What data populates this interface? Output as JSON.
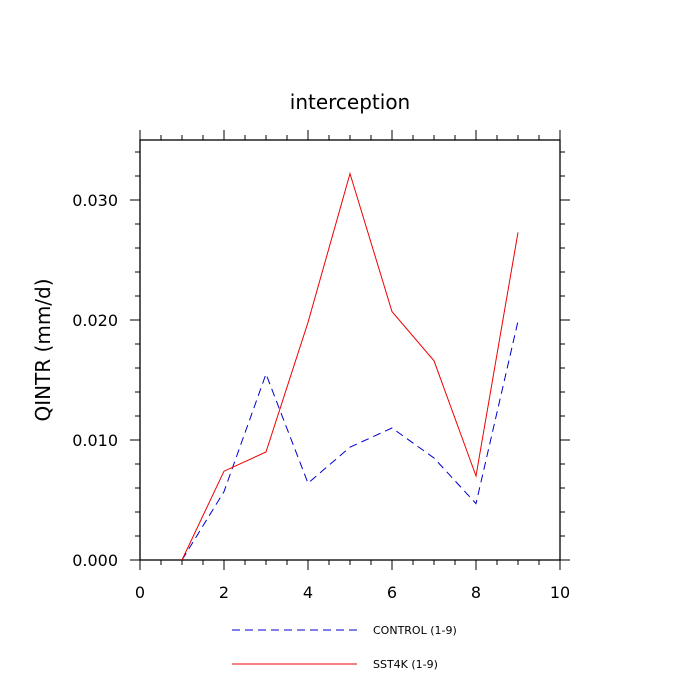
{
  "chart_data": {
    "type": "line",
    "title": "interception",
    "xlabel": "",
    "ylabel": "QINTR  (mm/d)",
    "xlim": [
      0,
      10
    ],
    "ylim": [
      0,
      0.035
    ],
    "x_ticks": [
      0,
      2,
      4,
      6,
      8,
      10
    ],
    "x_tick_labels": [
      "0",
      "2",
      "4",
      "6",
      "8",
      "10"
    ],
    "y_ticks": [
      0,
      0.01,
      0.02,
      0.03
    ],
    "y_tick_labels": [
      "0.000",
      "0.010",
      "0.020",
      "0.030"
    ],
    "legend_position": "bottom",
    "x": [
      1,
      2,
      3,
      4,
      5,
      6,
      7,
      8,
      9
    ],
    "series": [
      {
        "name": "CONTROL (1-9)",
        "color": "#0000cc",
        "style": "dashed",
        "values": [
          0.0,
          0.0057,
          0.0155,
          0.0064,
          0.0094,
          0.011,
          0.0085,
          0.0047,
          0.0199
        ]
      },
      {
        "name": "SST4K (1-9)",
        "color": "#ee0000",
        "style": "solid",
        "values": [
          0.0,
          0.0074,
          0.009,
          0.0198,
          0.0322,
          0.0207,
          0.0166,
          0.007,
          0.0273
        ]
      }
    ]
  }
}
